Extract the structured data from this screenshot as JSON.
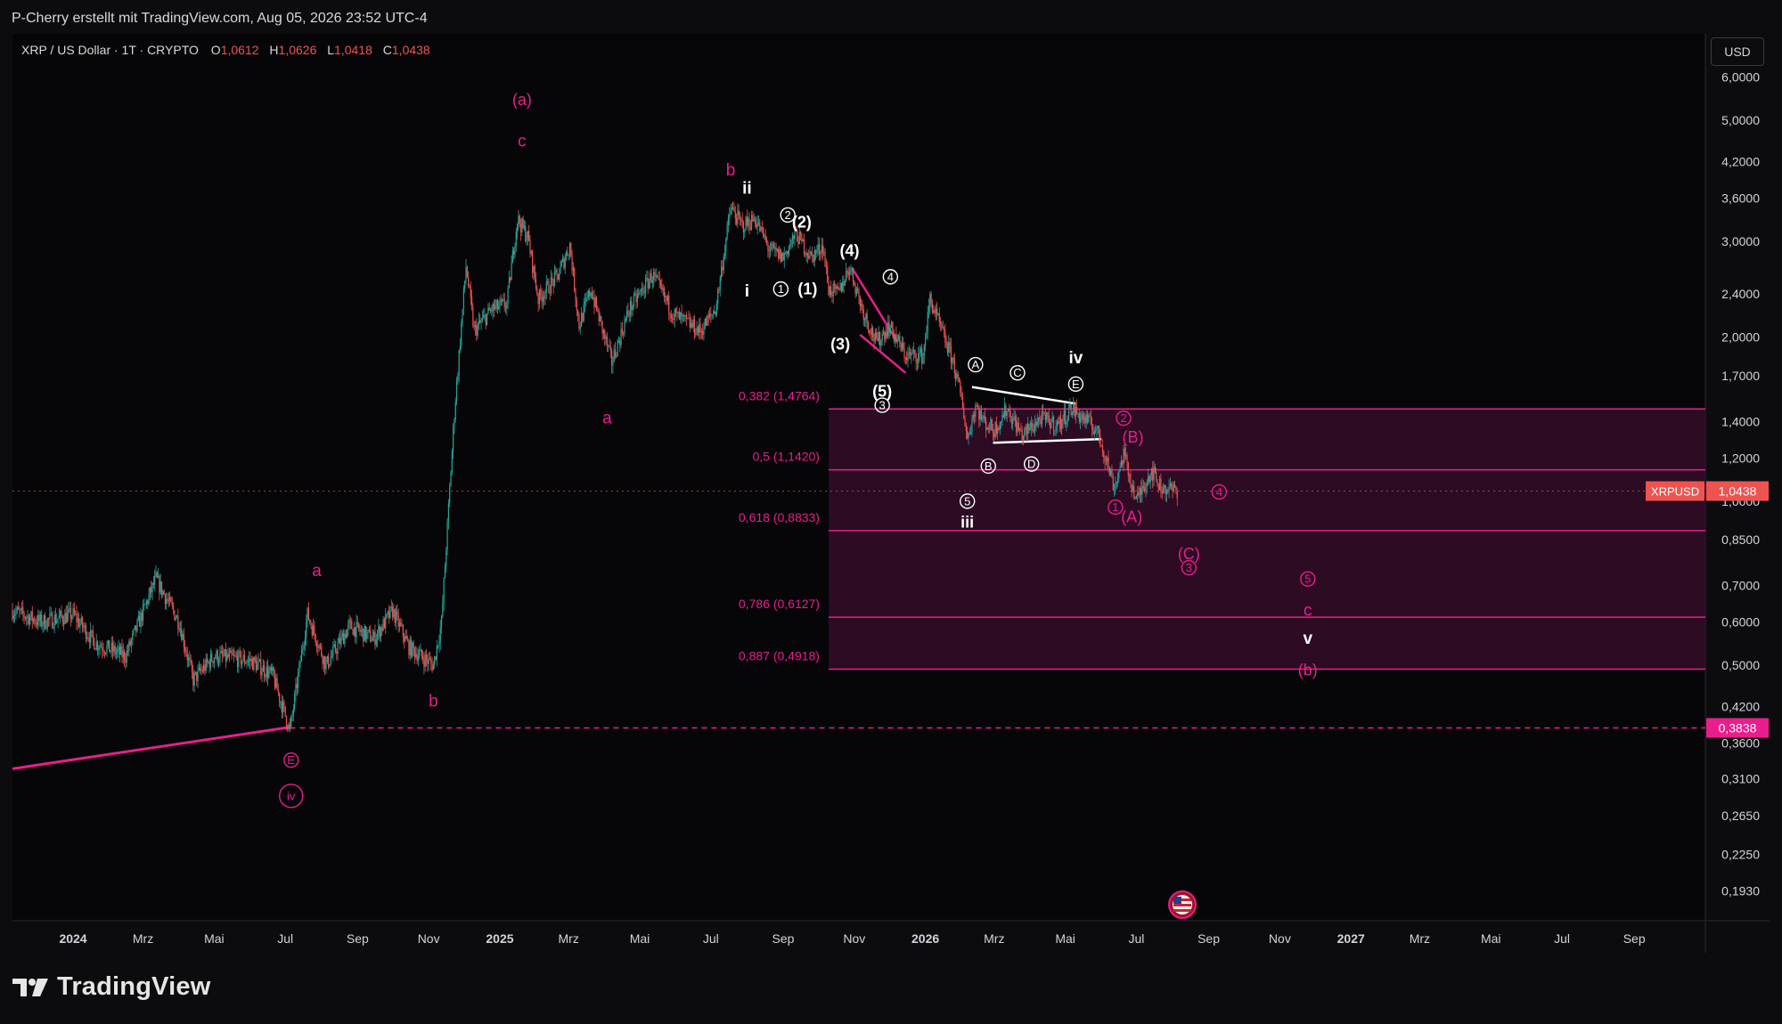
{
  "caption": "P-Cherry erstellt mit TradingView.com, Aug 05, 2026 23:52 UTC-4",
  "legend": {
    "symbol": "XRP / US Dollar · 1T · CRYPTO",
    "o_label": "O",
    "o": "1,0612",
    "h_label": "H",
    "h": "1,0626",
    "l_label": "L",
    "l": "1,0418",
    "c_label": "C",
    "c": "1,0438"
  },
  "currency_button": "USD",
  "brand": "TradingView",
  "colors": {
    "magenta": "#e91e8c",
    "up": "#26a69a",
    "down": "#ef5350",
    "zone": "#3a0d2c",
    "white": "#ffffff"
  },
  "chart_data": {
    "type": "candlestick",
    "scale": "log",
    "ylim": [
      0.17,
      7.2
    ],
    "xlim": [
      "2023-11-10",
      "2027-11-01"
    ],
    "x_ticks": [
      "2024",
      "Mrz",
      "Mai",
      "Jul",
      "Sep",
      "Nov",
      "2025",
      "Mrz",
      "Mai",
      "Jul",
      "Sep",
      "Nov",
      "2026",
      "Mrz",
      "Mai",
      "Jul",
      "Sep",
      "Nov",
      "2027",
      "Mrz",
      "Mai",
      "Jul",
      "Sep"
    ],
    "x_tick_dates": [
      "2024-01-01",
      "2024-03-01",
      "2024-05-01",
      "2024-07-01",
      "2024-09-01",
      "2024-11-01",
      "2025-01-01",
      "2025-03-01",
      "2025-05-01",
      "2025-07-01",
      "2025-09-01",
      "2025-11-01",
      "2026-01-01",
      "2026-03-01",
      "2026-05-01",
      "2026-07-01",
      "2026-09-01",
      "2026-11-01",
      "2027-01-01",
      "2027-03-01",
      "2027-05-01",
      "2027-07-01",
      "2027-09-01"
    ],
    "y_ticks": [
      6.0,
      5.0,
      4.2,
      3.6,
      3.0,
      2.4,
      2.0,
      1.7,
      1.4,
      1.2,
      1.0,
      0.85,
      0.7,
      0.6,
      0.5,
      0.42,
      0.36,
      0.31,
      0.265,
      0.225,
      0.193
    ],
    "y_tick_labels": [
      "6,0000",
      "5,0000",
      "4,2000",
      "3,6000",
      "3,0000",
      "2,4000",
      "2,0000",
      "1,7000",
      "1,4000",
      "1,2000",
      "1,0000",
      "0,8500",
      "0,7000",
      "0,6000",
      "0,5000",
      "0,4200",
      "0,3600",
      "0,3100",
      "0,2650",
      "0,2250",
      "0,1930"
    ],
    "price_path": [
      [
        "2023-11-10",
        0.63
      ],
      [
        "2023-12-05",
        0.6
      ],
      [
        "2024-01-01",
        0.62
      ],
      [
        "2024-01-20",
        0.55
      ],
      [
        "2024-02-15",
        0.52
      ],
      [
        "2024-03-12",
        0.72
      ],
      [
        "2024-04-01",
        0.6
      ],
      [
        "2024-04-13",
        0.47
      ],
      [
        "2024-05-01",
        0.52
      ],
      [
        "2024-06-01",
        0.51
      ],
      [
        "2024-06-20",
        0.48
      ],
      [
        "2024-07-05",
        0.38
      ],
      [
        "2024-07-20",
        0.62
      ],
      [
        "2024-08-05",
        0.5
      ],
      [
        "2024-08-25",
        0.59
      ],
      [
        "2024-09-15",
        0.56
      ],
      [
        "2024-10-01",
        0.63
      ],
      [
        "2024-10-15",
        0.54
      ],
      [
        "2024-11-05",
        0.5
      ],
      [
        "2024-11-12",
        0.6
      ],
      [
        "2024-11-23",
        1.45
      ],
      [
        "2024-12-03",
        2.7
      ],
      [
        "2024-12-10",
        2.05
      ],
      [
        "2024-12-25",
        2.25
      ],
      [
        "2025-01-07",
        2.3
      ],
      [
        "2025-01-16",
        3.3
      ],
      [
        "2025-01-25",
        3.05
      ],
      [
        "2025-02-03",
        2.35
      ],
      [
        "2025-02-20",
        2.6
      ],
      [
        "2025-03-02",
        2.95
      ],
      [
        "2025-03-10",
        2.1
      ],
      [
        "2025-03-20",
        2.45
      ],
      [
        "2025-04-07",
        1.8
      ],
      [
        "2025-04-22",
        2.25
      ],
      [
        "2025-05-12",
        2.6
      ],
      [
        "2025-05-30",
        2.2
      ],
      [
        "2025-06-22",
        2.05
      ],
      [
        "2025-07-05",
        2.25
      ],
      [
        "2025-07-18",
        3.45
      ],
      [
        "2025-07-28",
        3.2
      ],
      [
        "2025-08-08",
        3.3
      ],
      [
        "2025-08-20",
        2.9
      ],
      [
        "2025-09-01",
        2.8
      ],
      [
        "2025-09-12",
        3.1
      ],
      [
        "2025-09-25",
        2.8
      ],
      [
        "2025-10-05",
        2.95
      ],
      [
        "2025-10-10",
        2.45
      ],
      [
        "2025-10-18",
        2.4
      ],
      [
        "2025-10-28",
        2.7
      ],
      [
        "2025-11-08",
        2.25
      ],
      [
        "2025-11-20",
        1.95
      ],
      [
        "2025-12-01",
        2.1
      ],
      [
        "2025-12-15",
        1.85
      ],
      [
        "2025-12-30",
        1.85
      ],
      [
        "2026-01-05",
        2.35
      ],
      [
        "2026-01-15",
        2.05
      ],
      [
        "2026-01-25",
        1.8
      ],
      [
        "2026-02-02",
        1.5
      ],
      [
        "2026-02-06",
        1.3
      ],
      [
        "2026-02-13",
        1.5
      ],
      [
        "2026-02-20",
        1.4
      ],
      [
        "2026-03-01",
        1.35
      ],
      [
        "2026-03-12",
        1.48
      ],
      [
        "2026-03-25",
        1.32
      ],
      [
        "2026-04-10",
        1.42
      ],
      [
        "2026-04-25",
        1.38
      ],
      [
        "2026-05-06",
        1.48
      ],
      [
        "2026-05-20",
        1.4
      ],
      [
        "2026-05-28",
        1.35
      ],
      [
        "2026-06-05",
        1.2
      ],
      [
        "2026-06-12",
        1.06
      ],
      [
        "2026-06-20",
        1.22
      ],
      [
        "2026-07-01",
        1.0
      ],
      [
        "2026-07-08",
        1.08
      ],
      [
        "2026-07-14",
        1.14
      ],
      [
        "2026-07-22",
        1.06
      ],
      [
        "2026-08-05",
        1.044
      ]
    ],
    "price_line": {
      "label": "XRPUSD",
      "value": 1.0438,
      "value_label": "1,0438"
    },
    "level_line": {
      "value": 0.3838,
      "value_label": "0,3838"
    },
    "trendline": {
      "from": [
        "2023-11-10",
        0.323
      ],
      "to": [
        "2024-07-05",
        0.385
      ]
    },
    "fib_zone": {
      "start": "2025-10-10",
      "levels": [
        {
          "label": "0,382 (1,4764)",
          "value": 1.4764
        },
        {
          "label": "0,5 (1,1420)",
          "value": 1.142
        },
        {
          "label": "0,618 (0,8833)",
          "value": 0.8833
        },
        {
          "label": "0,786 (0,6127)",
          "value": 0.6127
        },
        {
          "label": "0,887 (0,4918)",
          "value": 0.4918
        }
      ]
    },
    "channels": [
      {
        "color": "magenta",
        "lines": [
          [
            [
              "2025-10-30",
              2.68
            ],
            [
              "2025-12-08",
              1.96
            ]
          ],
          [
            [
              "2025-11-06",
              2.02
            ],
            [
              "2025-12-15",
              1.72
            ]
          ]
        ]
      },
      {
        "color": "white",
        "lines": [
          [
            [
              "2026-02-10",
              1.62
            ],
            [
              "2026-05-10",
              1.51
            ]
          ],
          [
            [
              "2026-02-28",
              1.28
            ],
            [
              "2026-06-01",
              1.3
            ]
          ]
        ]
      }
    ],
    "wave_labels": [
      {
        "text": "(a)",
        "x": "2025-01-20",
        "y": 5.45,
        "color": "magenta",
        "style": "text"
      },
      {
        "text": "c",
        "x": "2025-01-20",
        "y": 4.58,
        "color": "magenta",
        "style": "text"
      },
      {
        "text": "b",
        "x": "2025-07-18",
        "y": 4.05,
        "color": "magenta",
        "style": "text"
      },
      {
        "text": "ii",
        "x": "2025-08-01",
        "y": 3.75,
        "color": "white",
        "style": "text"
      },
      {
        "text": "i",
        "x": "2025-08-01",
        "y": 2.43,
        "color": "white",
        "style": "text"
      },
      {
        "text": "2",
        "x": "2025-09-05",
        "y": 3.35,
        "color": "white",
        "style": "circle"
      },
      {
        "text": "(2)",
        "x": "2025-09-17",
        "y": 3.25,
        "color": "white",
        "style": "text"
      },
      {
        "text": "1",
        "x": "2025-08-30",
        "y": 2.45,
        "color": "white",
        "style": "circle"
      },
      {
        "text": "(1)",
        "x": "2025-09-22",
        "y": 2.45,
        "color": "white",
        "style": "text"
      },
      {
        "text": "(4)",
        "x": "2025-10-28",
        "y": 2.88,
        "color": "white",
        "style": "text"
      },
      {
        "text": "(3)",
        "x": "2025-10-20",
        "y": 1.94,
        "color": "white",
        "style": "text"
      },
      {
        "text": "4",
        "x": "2025-12-02",
        "y": 2.58,
        "color": "white",
        "style": "circle"
      },
      {
        "text": "(5)",
        "x": "2025-11-25",
        "y": 1.59,
        "color": "white",
        "style": "text"
      },
      {
        "text": "3",
        "x": "2025-11-25",
        "y": 1.5,
        "color": "white",
        "style": "circle"
      },
      {
        "text": "A",
        "x": "2026-02-13",
        "y": 1.78,
        "color": "white",
        "style": "circle"
      },
      {
        "text": "C",
        "x": "2026-03-21",
        "y": 1.72,
        "color": "white",
        "style": "circle"
      },
      {
        "text": "iv",
        "x": "2026-05-10",
        "y": 1.83,
        "color": "white",
        "style": "text"
      },
      {
        "text": "E",
        "x": "2026-05-10",
        "y": 1.64,
        "color": "white",
        "style": "circle"
      },
      {
        "text": "B",
        "x": "2026-02-24",
        "y": 1.16,
        "color": "white",
        "style": "circle"
      },
      {
        "text": "D",
        "x": "2026-04-02",
        "y": 1.17,
        "color": "white",
        "style": "circle"
      },
      {
        "text": "5",
        "x": "2026-02-06",
        "y": 1.0,
        "color": "white",
        "style": "circle"
      },
      {
        "text": "iii",
        "x": "2026-02-06",
        "y": 0.915,
        "color": "white",
        "style": "text"
      },
      {
        "text": "a",
        "x": "2025-04-03",
        "y": 1.42,
        "color": "magenta",
        "style": "text"
      },
      {
        "text": "a",
        "x": "2024-07-28",
        "y": 0.745,
        "color": "magenta",
        "style": "text"
      },
      {
        "text": "b",
        "x": "2024-11-05",
        "y": 0.43,
        "color": "magenta",
        "style": "text"
      },
      {
        "text": "E",
        "x": "2024-07-06",
        "y": 0.335,
        "color": "magenta",
        "style": "circle"
      },
      {
        "text": "iv",
        "x": "2024-07-06",
        "y": 0.288,
        "color": "magenta",
        "style": "circle"
      },
      {
        "text": "2",
        "x": "2026-06-20",
        "y": 1.42,
        "color": "magenta",
        "style": "circle"
      },
      {
        "text": "(B)",
        "x": "2026-06-28",
        "y": 1.31,
        "color": "magenta",
        "style": "text"
      },
      {
        "text": "4",
        "x": "2026-09-10",
        "y": 1.04,
        "color": "magenta",
        "style": "circle"
      },
      {
        "text": "1",
        "x": "2026-06-13",
        "y": 0.975,
        "color": "magenta",
        "style": "circle"
      },
      {
        "text": "(A)",
        "x": "2026-06-27",
        "y": 0.935,
        "color": "magenta",
        "style": "text"
      },
      {
        "text": "(C)",
        "x": "2026-08-15",
        "y": 0.8,
        "color": "magenta",
        "style": "text"
      },
      {
        "text": "3",
        "x": "2026-08-15",
        "y": 0.755,
        "color": "magenta",
        "style": "circle"
      },
      {
        "text": "5",
        "x": "2026-11-25",
        "y": 0.72,
        "color": "magenta",
        "style": "circle"
      },
      {
        "text": "c",
        "x": "2026-11-25",
        "y": 0.63,
        "color": "magenta",
        "style": "text"
      },
      {
        "text": "v",
        "x": "2026-11-25",
        "y": 0.56,
        "color": "white",
        "style": "text"
      },
      {
        "text": "(b)",
        "x": "2026-11-25",
        "y": 0.49,
        "color": "magenta",
        "style": "text"
      }
    ]
  }
}
